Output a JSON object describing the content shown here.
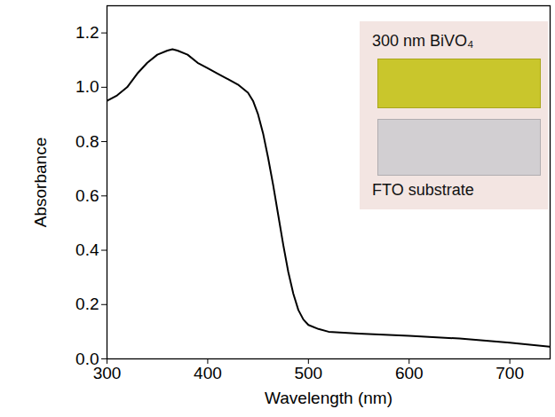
{
  "chart_data": {
    "type": "line",
    "xlabel": "Wavelength (nm)",
    "ylabel": "Absorbance",
    "x": [
      300,
      310,
      320,
      330,
      340,
      350,
      360,
      365,
      370,
      380,
      390,
      400,
      410,
      420,
      430,
      440,
      445,
      450,
      455,
      460,
      465,
      470,
      475,
      480,
      485,
      490,
      495,
      500,
      510,
      520,
      550,
      600,
      650,
      700,
      740
    ],
    "values": [
      0.95,
      0.97,
      1.0,
      1.05,
      1.09,
      1.12,
      1.135,
      1.14,
      1.135,
      1.12,
      1.09,
      1.07,
      1.05,
      1.03,
      1.01,
      0.98,
      0.95,
      0.9,
      0.83,
      0.74,
      0.64,
      0.53,
      0.42,
      0.32,
      0.24,
      0.18,
      0.145,
      0.125,
      0.11,
      0.1,
      0.093,
      0.085,
      0.075,
      0.06,
      0.045
    ],
    "color": "#000000",
    "xlim": [
      300,
      740
    ],
    "xticks": [
      300,
      400,
      500,
      600,
      700
    ],
    "ylim": [
      0,
      1.3
    ],
    "yticks": [
      {
        "value": 0,
        "label": "0.0"
      },
      0.2,
      0.4,
      0.6,
      0.8,
      {
        "value": 1,
        "label": "1.0"
      },
      1.2
    ],
    "annotations": [
      "300 nm BiVO₄",
      "FTO substrate"
    ]
  }
}
